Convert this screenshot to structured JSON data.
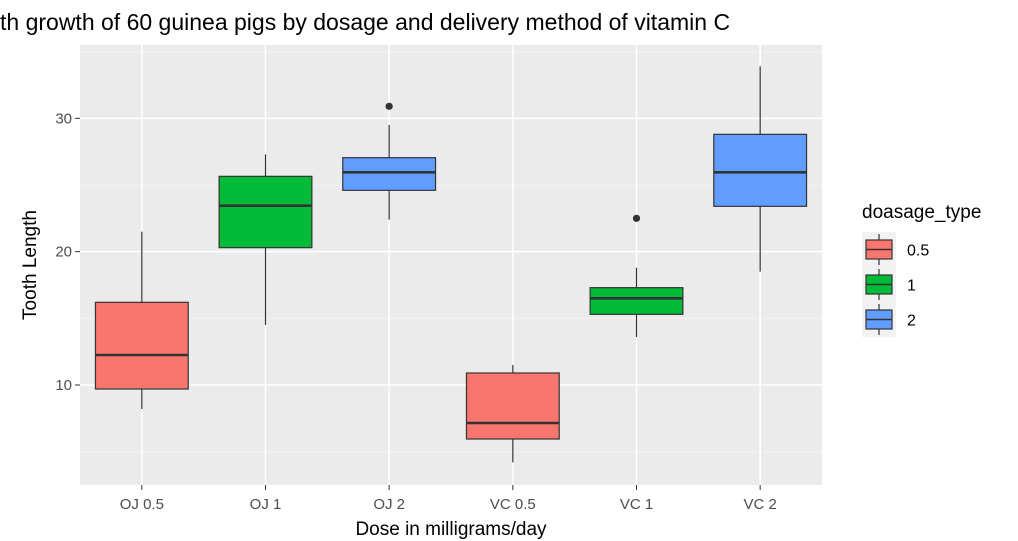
{
  "chart_data": {
    "type": "boxplot",
    "title": "th growth of 60 guinea pigs by dosage and delivery method of vitamin C",
    "xlabel": "Dose in milligrams/day",
    "ylabel": "Tooth Length",
    "categories": [
      "OJ 0.5",
      "OJ 1",
      "OJ 2",
      "VC 0.5",
      "VC 1",
      "VC 2"
    ],
    "yticks": [
      10,
      20,
      30
    ],
    "ylim": [
      2.5,
      35.5
    ],
    "grid": true,
    "legend": {
      "title": "doasage_type",
      "position": "right",
      "entries": [
        {
          "label": "0.5",
          "color": "#F8766D"
        },
        {
          "label": "1",
          "color": "#00BA38"
        },
        {
          "label": "2",
          "color": "#619CFF"
        }
      ]
    },
    "boxes": [
      {
        "category": "OJ 0.5",
        "dose": "0.5",
        "min": 8.2,
        "q1": 9.7,
        "median": 12.25,
        "q3": 16.2,
        "max": 21.5,
        "outliers": []
      },
      {
        "category": "OJ 1",
        "dose": "1",
        "min": 14.5,
        "q1": 20.3,
        "median": 23.45,
        "q3": 25.65,
        "max": 27.3,
        "outliers": []
      },
      {
        "category": "OJ 2",
        "dose": "2",
        "min": 22.4,
        "q1": 24.6,
        "median": 25.95,
        "q3": 27.05,
        "max": 29.5,
        "outliers": [
          30.9
        ]
      },
      {
        "category": "VC 0.5",
        "dose": "0.5",
        "min": 4.2,
        "q1": 5.95,
        "median": 7.15,
        "q3": 10.9,
        "max": 11.5,
        "outliers": []
      },
      {
        "category": "VC 1",
        "dose": "1",
        "min": 13.6,
        "q1": 15.3,
        "median": 16.5,
        "q3": 17.3,
        "max": 18.8,
        "outliers": [
          22.5
        ]
      },
      {
        "category": "VC 2",
        "dose": "2",
        "min": 18.5,
        "q1": 23.4,
        "median": 25.95,
        "q3": 28.8,
        "max": 33.9,
        "outliers": []
      }
    ]
  }
}
